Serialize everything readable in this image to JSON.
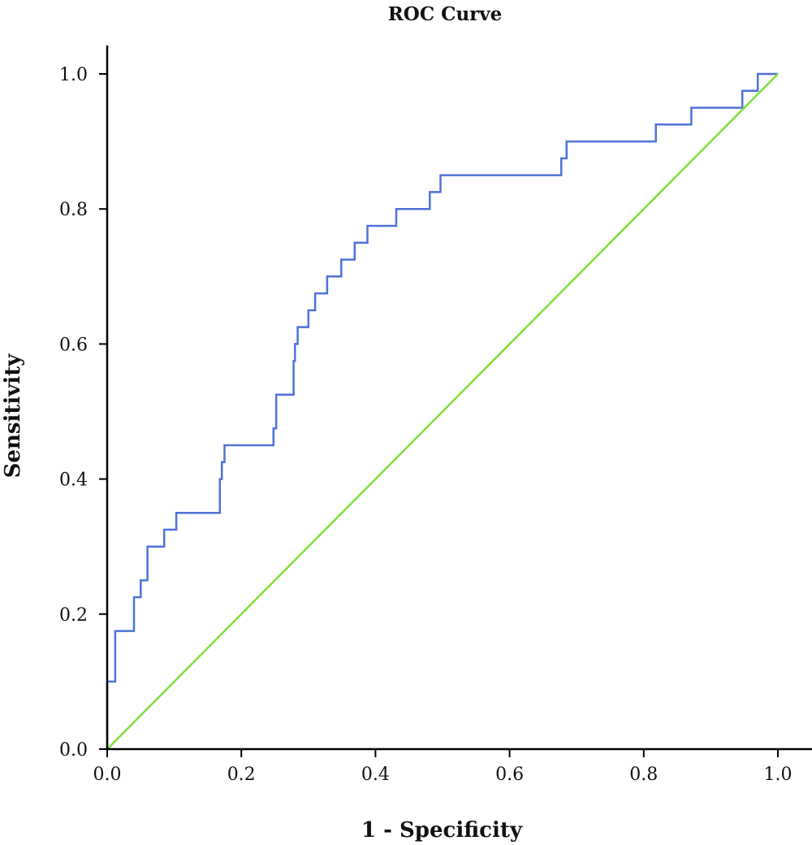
{
  "chart_data": {
    "type": "line",
    "title": "ROC Curve",
    "xlabel": "1 - Specificity",
    "ylabel": "Sensitivity",
    "xlim": [
      0,
      1
    ],
    "ylim": [
      0,
      1
    ],
    "x_ticks": [
      "0.0",
      "0.2",
      "0.4",
      "0.6",
      "0.8",
      "1.0"
    ],
    "y_ticks": [
      "0.0",
      "0.2",
      "0.4",
      "0.6",
      "0.8",
      "1.0"
    ],
    "grid": false,
    "legend": "none",
    "series": [
      {
        "color": "#4f72d9",
        "step": true,
        "points": [
          [
            0.0,
            0.0
          ],
          [
            0.0,
            0.1
          ],
          [
            0.012,
            0.1
          ],
          [
            0.012,
            0.175
          ],
          [
            0.04,
            0.175
          ],
          [
            0.04,
            0.225
          ],
          [
            0.05,
            0.225
          ],
          [
            0.05,
            0.25
          ],
          [
            0.06,
            0.25
          ],
          [
            0.06,
            0.3
          ],
          [
            0.085,
            0.3
          ],
          [
            0.085,
            0.325
          ],
          [
            0.103,
            0.325
          ],
          [
            0.103,
            0.35
          ],
          [
            0.168,
            0.35
          ],
          [
            0.168,
            0.4
          ],
          [
            0.171,
            0.4
          ],
          [
            0.171,
            0.425
          ],
          [
            0.175,
            0.425
          ],
          [
            0.175,
            0.45
          ],
          [
            0.248,
            0.45
          ],
          [
            0.248,
            0.475
          ],
          [
            0.252,
            0.475
          ],
          [
            0.252,
            0.525
          ],
          [
            0.278,
            0.525
          ],
          [
            0.278,
            0.575
          ],
          [
            0.28,
            0.575
          ],
          [
            0.28,
            0.6
          ],
          [
            0.284,
            0.6
          ],
          [
            0.284,
            0.625
          ],
          [
            0.3,
            0.625
          ],
          [
            0.3,
            0.65
          ],
          [
            0.31,
            0.65
          ],
          [
            0.31,
            0.675
          ],
          [
            0.328,
            0.675
          ],
          [
            0.328,
            0.7
          ],
          [
            0.349,
            0.7
          ],
          [
            0.349,
            0.725
          ],
          [
            0.369,
            0.725
          ],
          [
            0.369,
            0.75
          ],
          [
            0.388,
            0.75
          ],
          [
            0.388,
            0.775
          ],
          [
            0.431,
            0.775
          ],
          [
            0.431,
            0.8
          ],
          [
            0.481,
            0.8
          ],
          [
            0.481,
            0.825
          ],
          [
            0.497,
            0.825
          ],
          [
            0.497,
            0.85
          ],
          [
            0.677,
            0.85
          ],
          [
            0.677,
            0.875
          ],
          [
            0.685,
            0.875
          ],
          [
            0.685,
            0.9
          ],
          [
            0.818,
            0.9
          ],
          [
            0.818,
            0.925
          ],
          [
            0.871,
            0.925
          ],
          [
            0.871,
            0.95
          ],
          [
            0.947,
            0.95
          ],
          [
            0.947,
            0.975
          ],
          [
            0.97,
            0.975
          ],
          [
            0.97,
            1.0
          ],
          [
            1.0,
            1.0
          ]
        ]
      },
      {
        "color": "#7ee03a",
        "step": false,
        "points": [
          [
            0,
            0
          ],
          [
            1,
            1
          ]
        ]
      }
    ]
  }
}
